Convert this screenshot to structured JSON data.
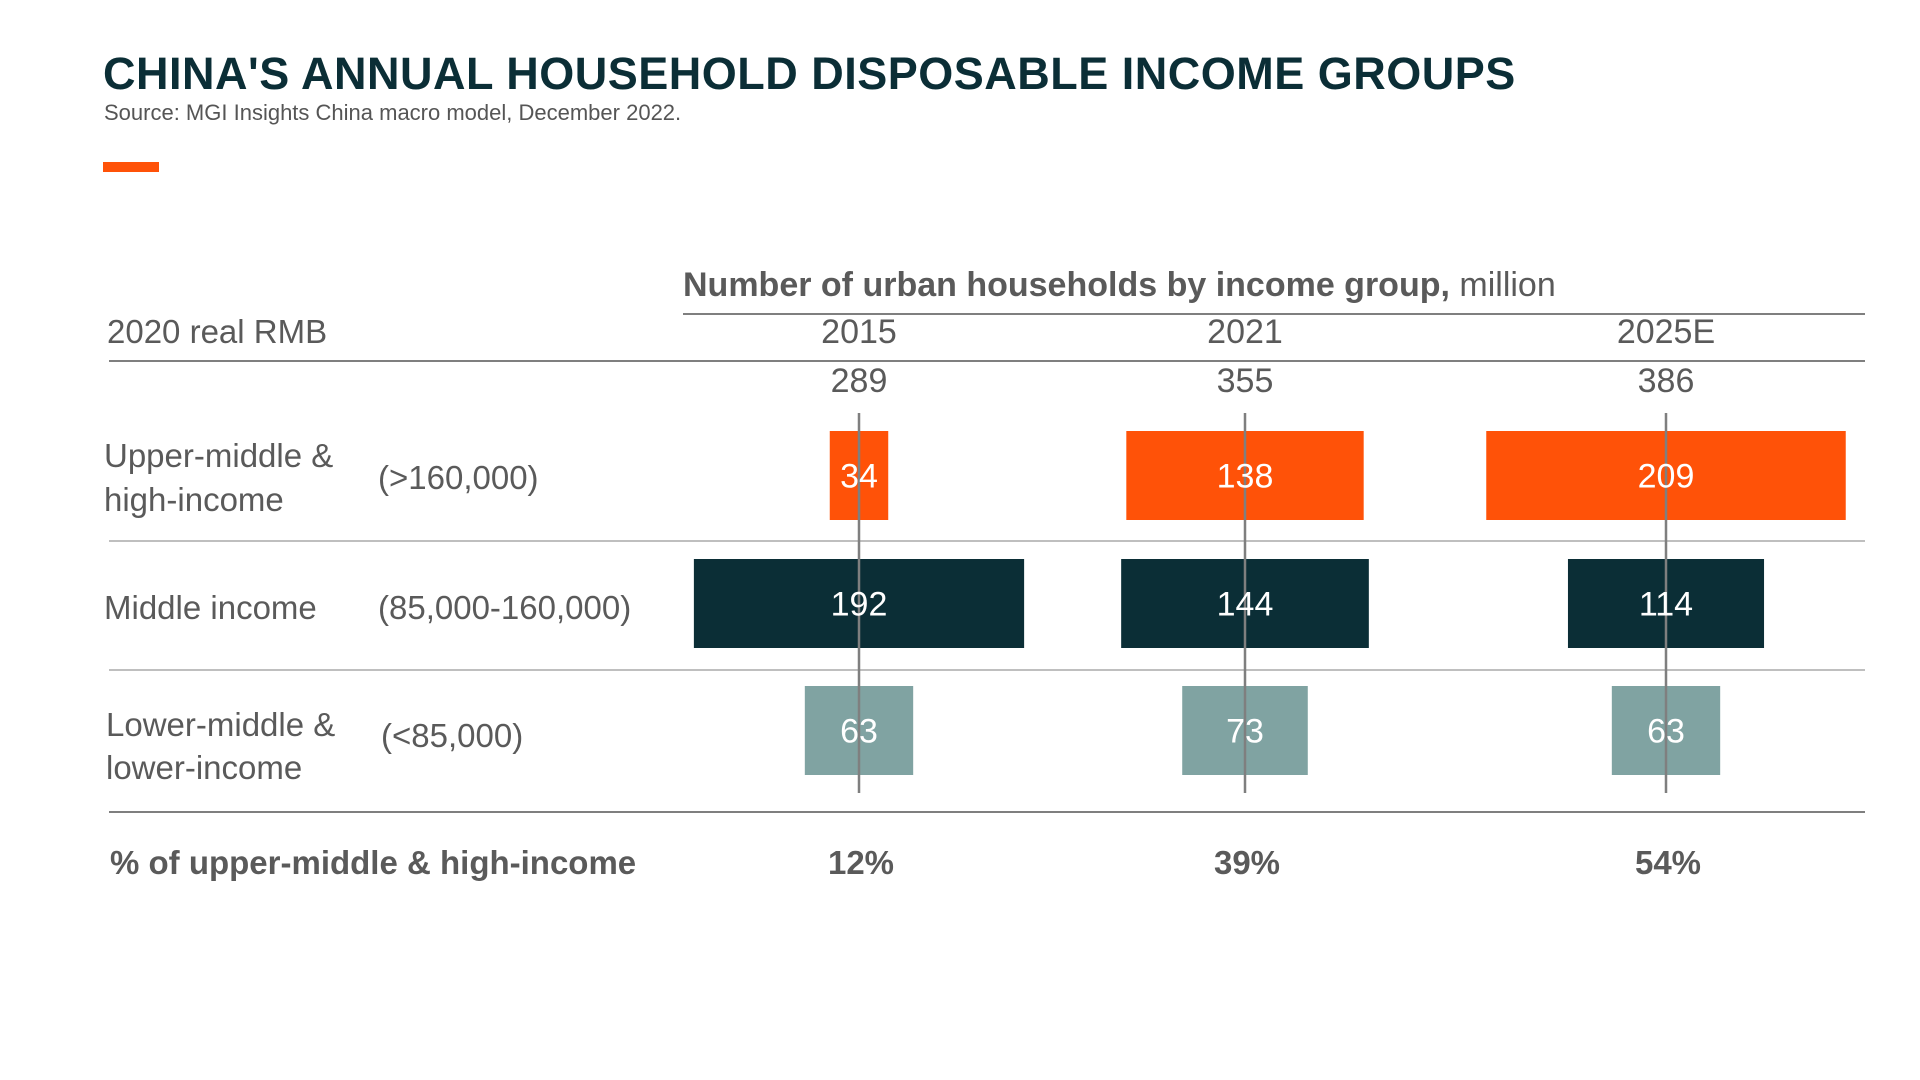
{
  "title": "CHINA'S ANNUAL HOUSEHOLD DISPOSABLE INCOME GROUPS",
  "source": "Source: MGI Insights China macro model, December 2022.",
  "colors": {
    "title": "#0b2e36",
    "accent": "#ff5208",
    "upper": "#ff5208",
    "middle": "#0b2e36",
    "lower": "#80a3a2",
    "text": "#5a5a5a",
    "rule": "#7f7f7f"
  },
  "chart_data": {
    "type": "bar",
    "header_bold": "Number of urban households by income group,",
    "header_unit": " million",
    "row_header": "2020 real RMB",
    "categories": [
      "2015",
      "2021",
      "2025E"
    ],
    "totals": [
      "289",
      "355",
      "386"
    ],
    "series": [
      {
        "name": "Upper-middle & high-income",
        "range": "(>160,000)",
        "values": [
          34,
          138,
          209
        ]
      },
      {
        "name": "Middle income",
        "range": "(85,000-160,000)",
        "values": [
          192,
          144,
          114
        ]
      },
      {
        "name": "Lower-middle & lower-income",
        "range": "(<85,000)",
        "values": [
          63,
          73,
          63
        ]
      }
    ],
    "row_labels": [
      [
        "Upper-middle &",
        "high-income"
      ],
      [
        "Middle income"
      ],
      [
        "Lower-middle &",
        "lower-income"
      ]
    ],
    "share_label": "% of upper-middle & high-income",
    "share_values": [
      "12%",
      "39%",
      "54%"
    ]
  }
}
